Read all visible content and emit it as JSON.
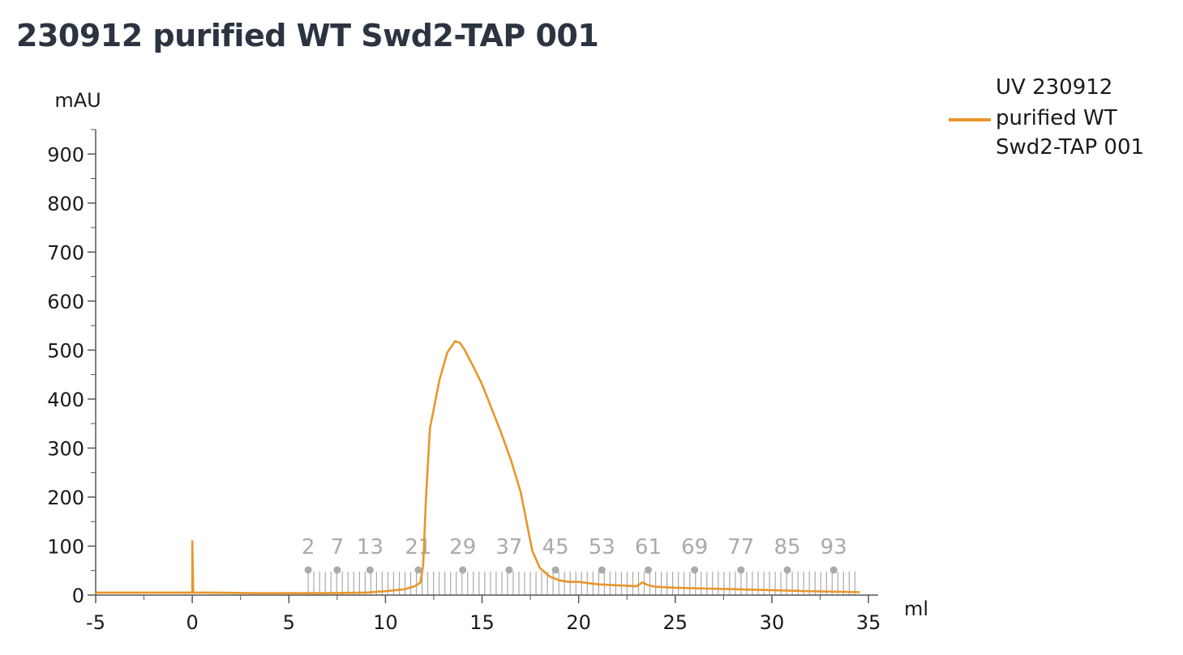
{
  "chart_data": {
    "type": "line",
    "title": "230912 purified WT Swd2-TAP 001",
    "xlabel": "ml",
    "ylabel": "mAU",
    "xlim": [
      -5,
      35.5
    ],
    "ylim": [
      0,
      950
    ],
    "x_ticks": [
      -5,
      0,
      5,
      10,
      15,
      20,
      25,
      30,
      35
    ],
    "y_ticks": [
      0,
      100,
      200,
      300,
      400,
      500,
      600,
      700,
      800,
      900
    ],
    "grid": false,
    "legend_position": "top-right",
    "legend_lines": [
      "UV 230912",
      "purified WT",
      "Swd2-TAP 001"
    ],
    "series": [
      {
        "name": "UV 230912 purified WT Swd2-TAP 001",
        "color": "#e8962a",
        "x": [
          -5,
          -0.05,
          0.0,
          0.0,
          0.05,
          1,
          3,
          5,
          7,
          9,
          10,
          11,
          11.5,
          11.8,
          11.95,
          12.1,
          12.3,
          12.5,
          12.8,
          13.2,
          13.6,
          13.85,
          14.1,
          14.5,
          15,
          15.5,
          16,
          16.5,
          17,
          17.3,
          17.6,
          18,
          18.5,
          19,
          19.5,
          20,
          21,
          22,
          23,
          23.3,
          23.6,
          24,
          25,
          27,
          30,
          32,
          34.5
        ],
        "y": [
          5,
          5,
          5,
          110,
          5,
          5,
          4,
          4,
          4,
          5,
          8,
          12,
          18,
          25,
          60,
          200,
          340,
          380,
          440,
          495,
          518,
          515,
          500,
          470,
          430,
          380,
          330,
          275,
          210,
          150,
          90,
          55,
          38,
          30,
          27,
          27,
          22,
          20,
          18,
          26,
          20,
          17,
          15,
          13,
          10,
          8,
          6
        ]
      }
    ],
    "fractions": {
      "labels": [
        "2",
        "7",
        "13",
        "21",
        "29",
        "37",
        "45",
        "53",
        "61",
        "69",
        "77",
        "85",
        "93"
      ],
      "label_x": [
        6.0,
        7.5,
        9.2,
        11.7,
        14.0,
        16.4,
        18.8,
        21.2,
        23.6,
        26.0,
        28.4,
        30.8,
        33.2
      ],
      "range": [
        6.0,
        34.3
      ],
      "count": 97,
      "color": "#aaaaaa"
    }
  }
}
